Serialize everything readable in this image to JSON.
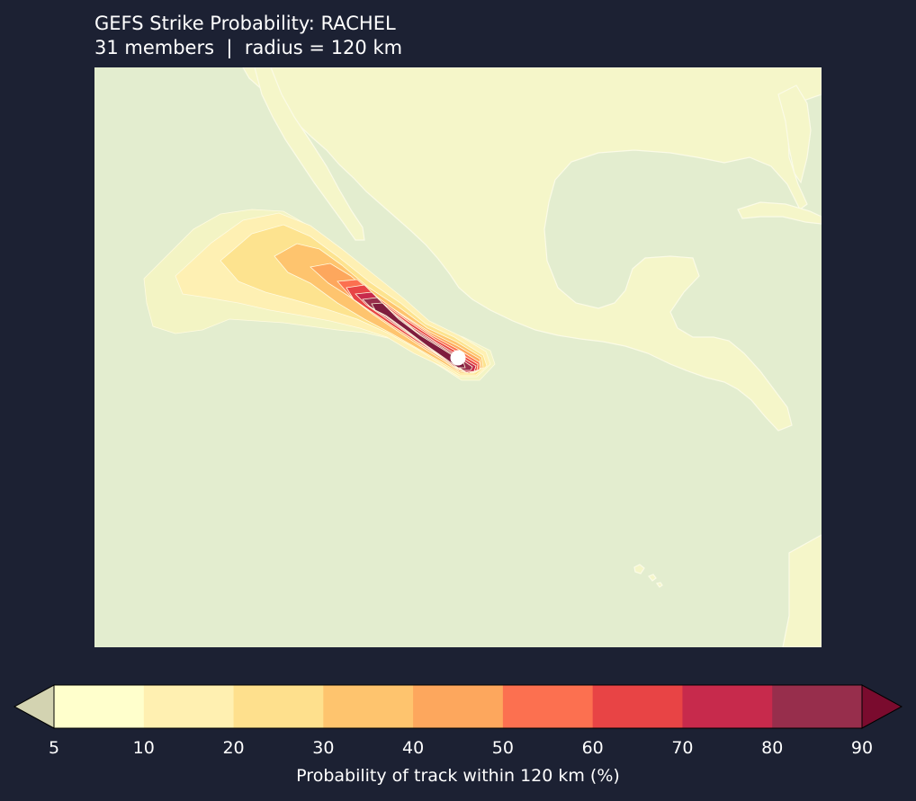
{
  "figure": {
    "title": "GEFS Strike Probability: RACHEL",
    "subtitle": "31 members  |  radius = 120 km"
  },
  "map": {
    "ocean_color": "#e3edcf",
    "land_color": "#f5f6c9",
    "coast_color": "#fbfbe6",
    "storm_marker": {
      "name": "current position",
      "color": "#ffffff"
    }
  },
  "chart_data": {
    "type": "heatmap",
    "colorbar": {
      "label": "Probability of track within 120 km (%)",
      "levels": [
        5,
        10,
        20,
        30,
        40,
        50,
        60,
        70,
        80,
        90
      ],
      "tick_labels": [
        "5",
        "10",
        "20",
        "30",
        "40",
        "50",
        "60",
        "70",
        "80",
        "90"
      ],
      "colors": [
        "#ffffcc",
        "#fff0b1",
        "#fee08d",
        "#fec46e",
        "#fda75d",
        "#fc7050",
        "#e84445",
        "#c72a4c",
        "#972e4c"
      ],
      "extend_min_color": "#d3d3b1",
      "extend_max_color": "#7a0b2e"
    }
  }
}
